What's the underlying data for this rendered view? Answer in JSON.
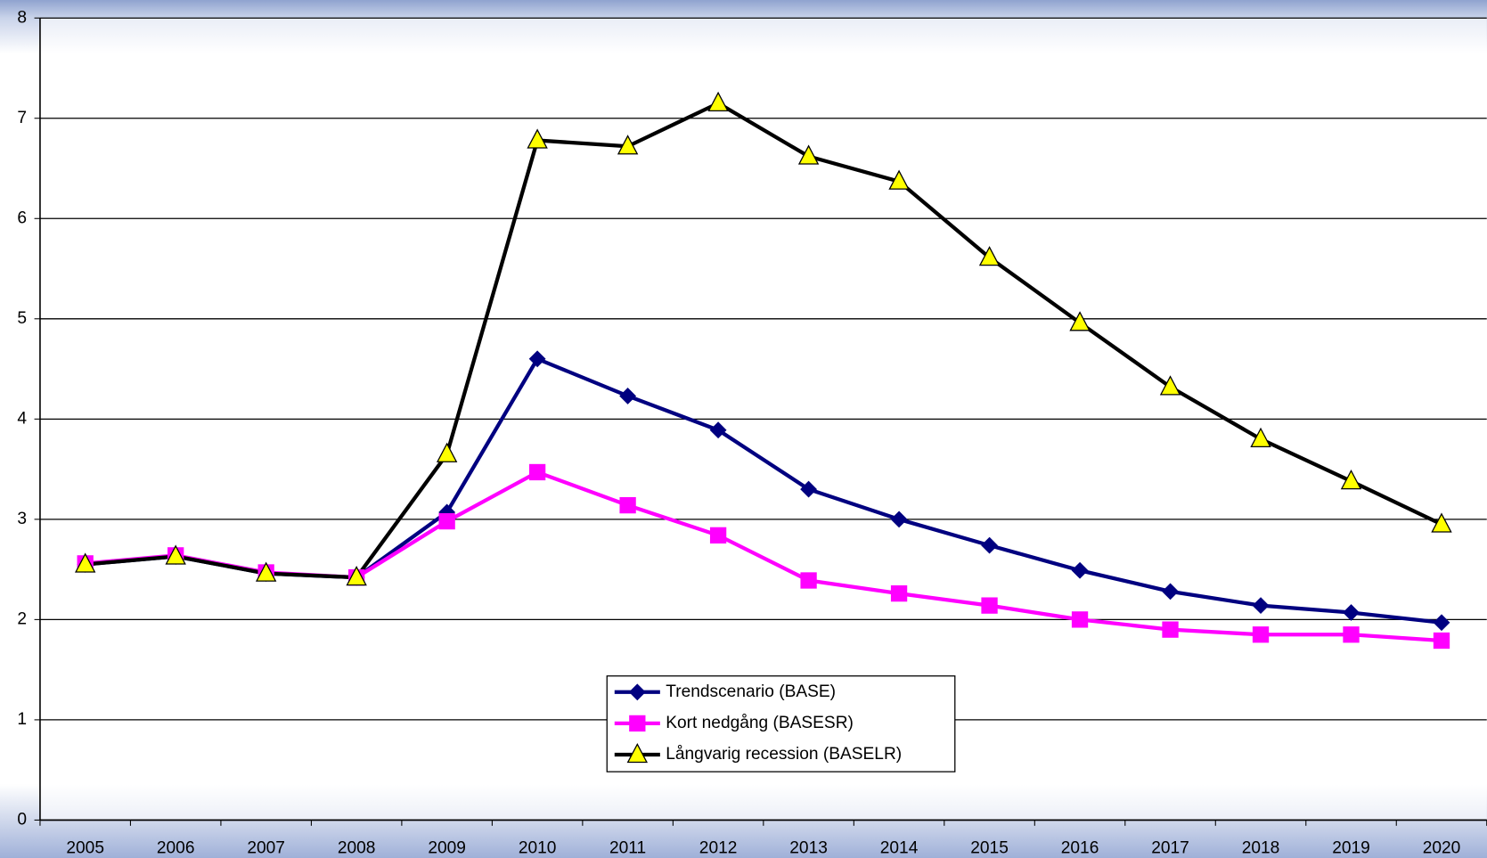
{
  "chart_data": {
    "type": "line",
    "categories": [
      "2005",
      "2006",
      "2007",
      "2008",
      "2009",
      "2010",
      "2011",
      "2012",
      "2013",
      "2014",
      "2015",
      "2016",
      "2017",
      "2018",
      "2019",
      "2020"
    ],
    "ylim": [
      0,
      8
    ],
    "yticks": [
      0,
      1,
      2,
      3,
      4,
      5,
      6,
      7,
      8
    ],
    "grid": true,
    "legend": "bottom-center",
    "series": [
      {
        "name": "Trendscenario (BASE)",
        "color": "#000080",
        "marker": "diamond",
        "marker_color": "#000080",
        "values": [
          2.55,
          2.63,
          2.46,
          2.42,
          3.07,
          4.6,
          4.23,
          3.89,
          3.3,
          3.0,
          2.74,
          2.49,
          2.28,
          2.14,
          2.07,
          1.97
        ]
      },
      {
        "name": "Kort nedgång (BASESR)",
        "color": "#ff00ff",
        "marker": "square",
        "marker_color": "#ff00ff",
        "values": [
          2.56,
          2.64,
          2.47,
          2.42,
          2.98,
          3.47,
          3.14,
          2.84,
          2.39,
          2.26,
          2.14,
          2.0,
          1.9,
          1.85,
          1.85,
          1.79
        ]
      },
      {
        "name": "Långvarig recession (BASELR)",
        "color": "#000000",
        "marker": "triangle",
        "marker_color": "#ffff00",
        "values": [
          2.55,
          2.63,
          2.46,
          2.42,
          3.65,
          6.78,
          6.72,
          7.15,
          6.62,
          6.37,
          5.61,
          4.96,
          4.32,
          3.8,
          3.38,
          2.95
        ]
      }
    ]
  }
}
